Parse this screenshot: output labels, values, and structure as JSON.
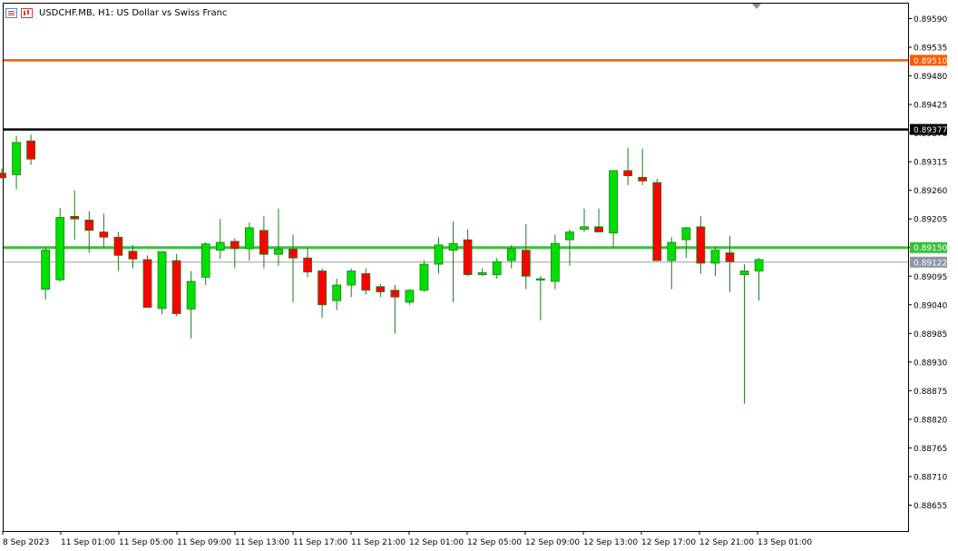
{
  "window": {
    "symbol_title": "USDCHF.MB, H1:  US Dollar vs Swiss Franc"
  },
  "icons": {
    "left": "chart-list-icon",
    "right": "chart-bars-icon",
    "scroll_marker": "triangle-down-icon"
  },
  "colors": {
    "background": "#ffffff",
    "bull": "#00e000",
    "bear": "#ff0000",
    "wick": "#1f7a1f",
    "orange_line": "#ff5a00",
    "black_line": "#000000",
    "green_line": "#3cbe3c",
    "grey_line": "#a0a0a0"
  },
  "chart_data": {
    "type": "candlestick",
    "y_ticks": [
      "0.89590",
      "0.89535",
      "0.89480",
      "0.89425",
      "0.89370",
      "0.89315",
      "0.89260",
      "0.89205",
      "0.89150",
      "0.89095",
      "0.89040",
      "0.88985",
      "0.88930",
      "0.88875",
      "0.88820",
      "0.88765",
      "0.88710",
      "0.88655"
    ],
    "x_labels": [
      "8 Sep 2023",
      "11 Sep 01:00",
      "11 Sep 05:00",
      "11 Sep 09:00",
      "11 Sep 13:00",
      "11 Sep 17:00",
      "11 Sep 21:00",
      "12 Sep 01:00",
      "12 Sep 05:00",
      "12 Sep 09:00",
      "12 Sep 13:00",
      "12 Sep 17:00",
      "12 Sep 21:00",
      "13 Sep 01:00"
    ],
    "y_range": [
      0.88625,
      0.8962
    ],
    "levels": [
      {
        "price": 0.8951,
        "label": "0.89510",
        "color": "orange"
      },
      {
        "price": 0.89377,
        "label": "0.89377",
        "color": "black"
      },
      {
        "price": 0.8915,
        "label": "0.89150",
        "color": "green"
      },
      {
        "price": 0.89122,
        "label": "0.89122",
        "color": "grey"
      }
    ],
    "candles": [
      {
        "o": 0.89293,
        "h": 0.89302,
        "l": 0.89283,
        "c": 0.89284
      },
      {
        "o": 0.8929,
        "h": 0.89365,
        "l": 0.89262,
        "c": 0.89352
      },
      {
        "o": 0.89355,
        "h": 0.89367,
        "l": 0.89309,
        "c": 0.8932
      },
      {
        "o": 0.8907,
        "h": 0.89152,
        "l": 0.8905,
        "c": 0.89145
      },
      {
        "o": 0.89088,
        "h": 0.89226,
        "l": 0.89085,
        "c": 0.89208
      },
      {
        "o": 0.8921,
        "h": 0.8926,
        "l": 0.89165,
        "c": 0.89205
      },
      {
        "o": 0.89203,
        "h": 0.8922,
        "l": 0.8914,
        "c": 0.89183
      },
      {
        "o": 0.8918,
        "h": 0.89215,
        "l": 0.8915,
        "c": 0.8917
      },
      {
        "o": 0.8917,
        "h": 0.8918,
        "l": 0.89105,
        "c": 0.89135
      },
      {
        "o": 0.89143,
        "h": 0.89155,
        "l": 0.8911,
        "c": 0.89128
      },
      {
        "o": 0.89127,
        "h": 0.89135,
        "l": 0.89035,
        "c": 0.89035
      },
      {
        "o": 0.89033,
        "h": 0.89142,
        "l": 0.89022,
        "c": 0.89142
      },
      {
        "o": 0.89125,
        "h": 0.89138,
        "l": 0.89018,
        "c": 0.89023
      },
      {
        "o": 0.89032,
        "h": 0.89105,
        "l": 0.88975,
        "c": 0.89085
      },
      {
        "o": 0.89093,
        "h": 0.8916,
        "l": 0.89078,
        "c": 0.89157
      },
      {
        "o": 0.89145,
        "h": 0.89205,
        "l": 0.89128,
        "c": 0.8916
      },
      {
        "o": 0.89162,
        "h": 0.89168,
        "l": 0.8911,
        "c": 0.89148
      },
      {
        "o": 0.89148,
        "h": 0.89198,
        "l": 0.89125,
        "c": 0.89188
      },
      {
        "o": 0.89183,
        "h": 0.8921,
        "l": 0.8911,
        "c": 0.89137
      },
      {
        "o": 0.89137,
        "h": 0.89225,
        "l": 0.89115,
        "c": 0.89147
      },
      {
        "o": 0.89147,
        "h": 0.89175,
        "l": 0.89045,
        "c": 0.8913
      },
      {
        "o": 0.8913,
        "h": 0.8915,
        "l": 0.89093,
        "c": 0.89103
      },
      {
        "o": 0.89105,
        "h": 0.8911,
        "l": 0.89015,
        "c": 0.8904
      },
      {
        "o": 0.89048,
        "h": 0.8909,
        "l": 0.8903,
        "c": 0.89078
      },
      {
        "o": 0.89078,
        "h": 0.8911,
        "l": 0.89055,
        "c": 0.89105
      },
      {
        "o": 0.891,
        "h": 0.8911,
        "l": 0.8906,
        "c": 0.89068
      },
      {
        "o": 0.89075,
        "h": 0.8908,
        "l": 0.89055,
        "c": 0.89065
      },
      {
        "o": 0.89068,
        "h": 0.89078,
        "l": 0.88985,
        "c": 0.89055
      },
      {
        "o": 0.89045,
        "h": 0.8907,
        "l": 0.8904,
        "c": 0.89068
      },
      {
        "o": 0.89068,
        "h": 0.89125,
        "l": 0.89065,
        "c": 0.89118
      },
      {
        "o": 0.89118,
        "h": 0.8917,
        "l": 0.891,
        "c": 0.89155
      },
      {
        "o": 0.89145,
        "h": 0.892,
        "l": 0.89045,
        "c": 0.89158
      },
      {
        "o": 0.89165,
        "h": 0.89185,
        "l": 0.89095,
        "c": 0.89098
      },
      {
        "o": 0.89098,
        "h": 0.8911,
        "l": 0.89095,
        "c": 0.89102
      },
      {
        "o": 0.89098,
        "h": 0.8913,
        "l": 0.8909,
        "c": 0.89123
      },
      {
        "o": 0.89125,
        "h": 0.89155,
        "l": 0.8911,
        "c": 0.89148
      },
      {
        "o": 0.89145,
        "h": 0.89195,
        "l": 0.8907,
        "c": 0.89095
      },
      {
        "o": 0.8909,
        "h": 0.89095,
        "l": 0.8901,
        "c": 0.8909
      },
      {
        "o": 0.89085,
        "h": 0.89175,
        "l": 0.8907,
        "c": 0.89158
      },
      {
        "o": 0.89165,
        "h": 0.89185,
        "l": 0.89115,
        "c": 0.8918
      },
      {
        "o": 0.89185,
        "h": 0.89225,
        "l": 0.8918,
        "c": 0.8919
      },
      {
        "o": 0.8919,
        "h": 0.89225,
        "l": 0.8918,
        "c": 0.8918
      },
      {
        "o": 0.89178,
        "h": 0.89298,
        "l": 0.8915,
        "c": 0.89298
      },
      {
        "o": 0.89298,
        "h": 0.89342,
        "l": 0.8927,
        "c": 0.89288
      },
      {
        "o": 0.89285,
        "h": 0.8934,
        "l": 0.8927,
        "c": 0.89278
      },
      {
        "o": 0.89275,
        "h": 0.89282,
        "l": 0.89125,
        "c": 0.89125
      },
      {
        "o": 0.89125,
        "h": 0.8917,
        "l": 0.8907,
        "c": 0.8916
      },
      {
        "o": 0.89165,
        "h": 0.8919,
        "l": 0.8913,
        "c": 0.89188
      },
      {
        "o": 0.8919,
        "h": 0.8921,
        "l": 0.891,
        "c": 0.8912
      },
      {
        "o": 0.8912,
        "h": 0.89152,
        "l": 0.89095,
        "c": 0.89145
      },
      {
        "o": 0.8914,
        "h": 0.89172,
        "l": 0.89065,
        "c": 0.89123
      },
      {
        "o": 0.89098,
        "h": 0.89118,
        "l": 0.8885,
        "c": 0.89105
      },
      {
        "o": 0.89105,
        "h": 0.8913,
        "l": 0.89048,
        "c": 0.89127
      }
    ]
  }
}
